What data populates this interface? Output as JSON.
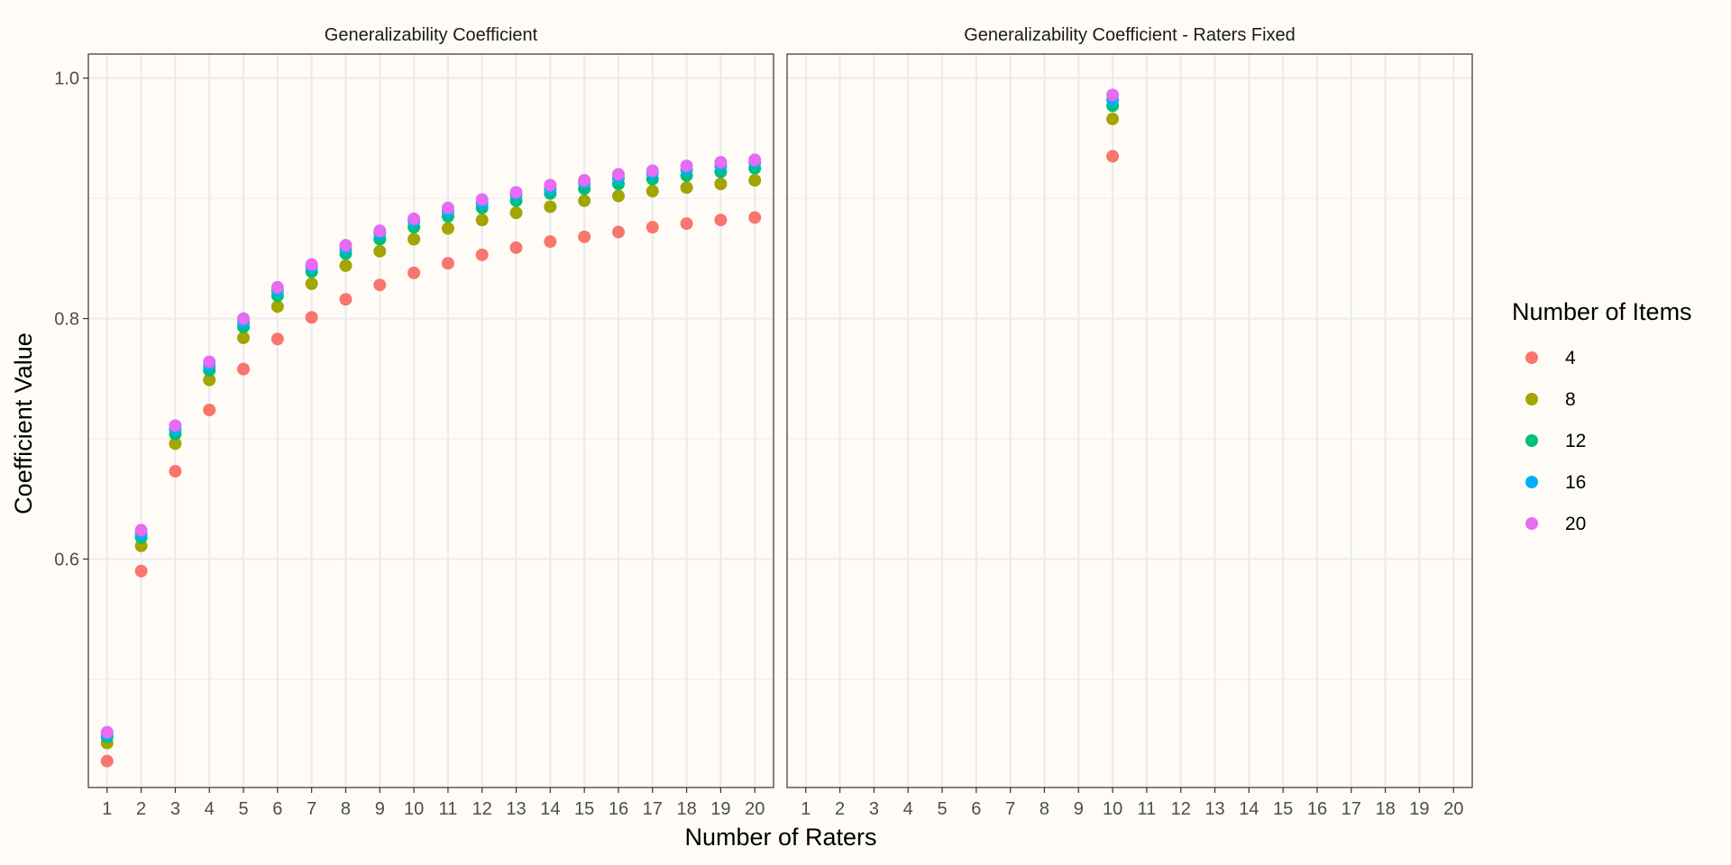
{
  "chart_data": {
    "type": "scatter",
    "xlabel": "Number of Raters",
    "ylabel": "Coefficient Value",
    "xlim": [
      0.45,
      20.55
    ],
    "ylim": [
      0.41,
      1.02
    ],
    "x_ticks": [
      1,
      2,
      3,
      4,
      5,
      6,
      7,
      8,
      9,
      10,
      11,
      12,
      13,
      14,
      15,
      16,
      17,
      18,
      19,
      20
    ],
    "y_ticks": [
      0.6,
      0.8,
      1.0
    ],
    "y_tick_labels": [
      "0.6",
      "0.8",
      "1.0"
    ],
    "y_minor": [
      0.5,
      0.7,
      0.9
    ],
    "grid": true,
    "legend": {
      "title": "Number of Items",
      "position": "right",
      "entries": [
        "4",
        "8",
        "12",
        "16",
        "20"
      ]
    },
    "colors": [
      "#f8766d",
      "#a3a500",
      "#00bf7d",
      "#00b0f6",
      "#e76bf3"
    ],
    "panels": [
      {
        "title": "Generalizability Coefficient",
        "x": [
          1,
          2,
          3,
          4,
          5,
          6,
          7,
          8,
          9,
          10,
          11,
          12,
          13,
          14,
          15,
          16,
          17,
          18,
          19,
          20
        ],
        "series": [
          {
            "name": "4",
            "values": [
              0.432,
              0.59,
              0.673,
              0.724,
              0.758,
              0.783,
              0.801,
              0.816,
              0.828,
              0.838,
              0.846,
              0.853,
              0.859,
              0.864,
              0.868,
              0.872,
              0.876,
              0.879,
              0.882,
              0.884
            ]
          },
          {
            "name": "8",
            "values": [
              0.447,
              0.611,
              0.696,
              0.749,
              0.784,
              0.81,
              0.829,
              0.844,
              0.856,
              0.866,
              0.875,
              0.882,
              0.888,
              0.893,
              0.898,
              0.902,
              0.906,
              0.909,
              0.912,
              0.915
            ]
          },
          {
            "name": "12",
            "values": [
              0.452,
              0.618,
              0.704,
              0.757,
              0.793,
              0.819,
              0.839,
              0.854,
              0.866,
              0.876,
              0.885,
              0.892,
              0.898,
              0.904,
              0.908,
              0.912,
              0.916,
              0.919,
              0.922,
              0.925
            ]
          },
          {
            "name": "16",
            "values": [
              0.454,
              0.621,
              0.708,
              0.761,
              0.797,
              0.823,
              0.843,
              0.858,
              0.871,
              0.881,
              0.889,
              0.896,
              0.903,
              0.908,
              0.913,
              0.917,
              0.921,
              0.924,
              0.927,
              0.93
            ]
          },
          {
            "name": "20",
            "values": [
              0.456,
              0.624,
              0.711,
              0.764,
              0.8,
              0.826,
              0.845,
              0.861,
              0.873,
              0.883,
              0.892,
              0.899,
              0.905,
              0.911,
              0.915,
              0.92,
              0.923,
              0.927,
              0.93,
              0.932
            ]
          }
        ]
      },
      {
        "title": "Generalizability Coefficient - Raters Fixed",
        "x": [
          10
        ],
        "series": [
          {
            "name": "4",
            "values": [
              0.935
            ]
          },
          {
            "name": "8",
            "values": [
              0.966
            ]
          },
          {
            "name": "12",
            "values": [
              0.977
            ]
          },
          {
            "name": "16",
            "values": [
              0.982
            ]
          },
          {
            "name": "20",
            "values": [
              0.986
            ]
          }
        ]
      }
    ]
  }
}
